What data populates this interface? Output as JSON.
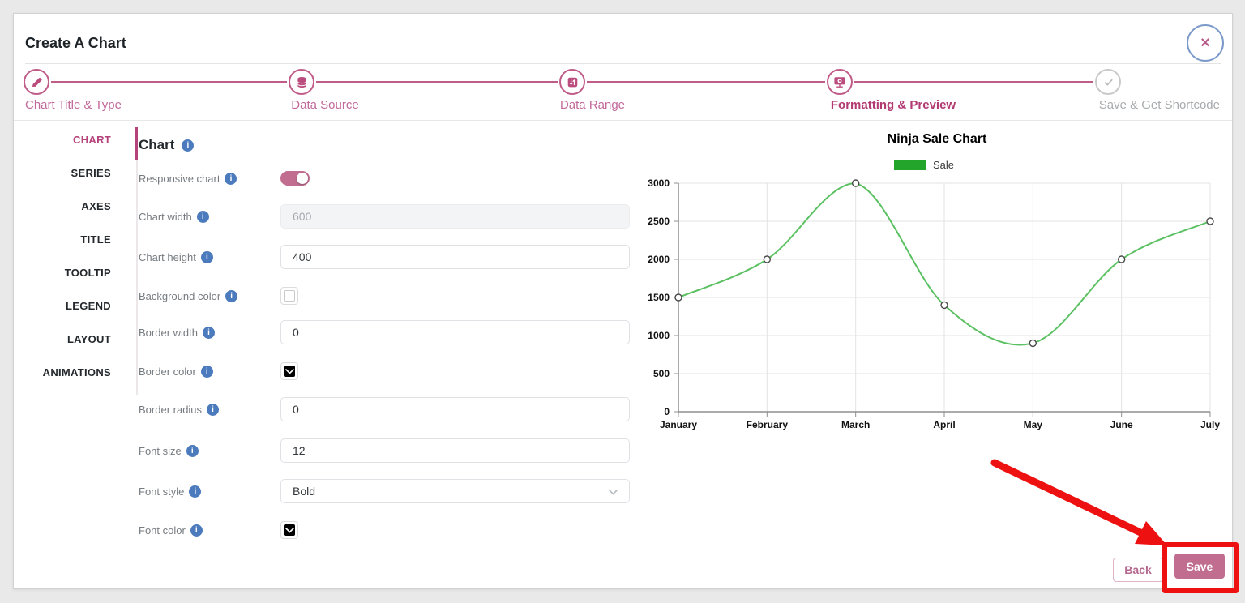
{
  "app": {
    "title": "Create A Chart"
  },
  "close_button": {
    "symbol": "×"
  },
  "stepper": {
    "steps": [
      {
        "label": "Chart Title & Type",
        "icon": "pencil-icon",
        "state": "completed"
      },
      {
        "label": "Data Source",
        "icon": "database-icon",
        "state": "completed"
      },
      {
        "label": "Data Range",
        "icon": "data-range-icon",
        "state": "completed"
      },
      {
        "label": "Formatting & Preview",
        "icon": "monitor-icon",
        "state": "active"
      },
      {
        "label": "Save & Get Shortcode",
        "icon": "check-icon",
        "state": "upcoming"
      }
    ]
  },
  "sidebar": {
    "tabs": [
      {
        "label": "CHART",
        "active": true
      },
      {
        "label": "SERIES",
        "active": false
      },
      {
        "label": "AXES",
        "active": false
      },
      {
        "label": "TITLE",
        "active": false
      },
      {
        "label": "TOOLTIP",
        "active": false
      },
      {
        "label": "LEGEND",
        "active": false
      },
      {
        "label": "LAYOUT",
        "active": false
      },
      {
        "label": "ANIMATIONS",
        "active": false
      }
    ]
  },
  "panel": {
    "title": "Chart",
    "fields": [
      {
        "label": "Responsive chart",
        "type": "toggle",
        "value": "on"
      },
      {
        "label": "Chart width",
        "type": "input",
        "value": "600",
        "disabled": true
      },
      {
        "label": "Chart height",
        "type": "input",
        "value": "400",
        "disabled": false
      },
      {
        "label": "Background color",
        "type": "color",
        "value": "#ffffff"
      },
      {
        "label": "Border width",
        "type": "input",
        "value": "0",
        "disabled": false
      },
      {
        "label": "Border color",
        "type": "color",
        "value": "#000000"
      },
      {
        "label": "Border radius",
        "type": "input",
        "value": "0",
        "disabled": false
      },
      {
        "label": "Font size",
        "type": "input",
        "value": "12",
        "disabled": false
      },
      {
        "label": "Font style",
        "type": "select",
        "value": "Bold"
      },
      {
        "label": "Font color",
        "type": "color",
        "value": "#000000"
      }
    ]
  },
  "chart_data": {
    "type": "line",
    "title": "Ninja Sale Chart",
    "x": [
      "January",
      "February",
      "March",
      "April",
      "May",
      "June",
      "July"
    ],
    "series": [
      {
        "name": "Sale",
        "color": "#23a52c",
        "line_color": "#5bc162",
        "values": [
          1500,
          2000,
          3000,
          1400,
          900,
          2000,
          2500
        ]
      }
    ],
    "ylim": [
      0,
      3000
    ],
    "ytick_step": 500,
    "grid": true,
    "smooth": true,
    "legend_position": "top",
    "marker": "circle-open"
  },
  "footer": {
    "back_label": "Back",
    "save_label": "Save"
  },
  "colors": {
    "accent_pink": "#bb4d7e",
    "button_pink": "#c06d90",
    "info_blue": "#4c7bbd",
    "annotation_red": "#ee1111"
  }
}
